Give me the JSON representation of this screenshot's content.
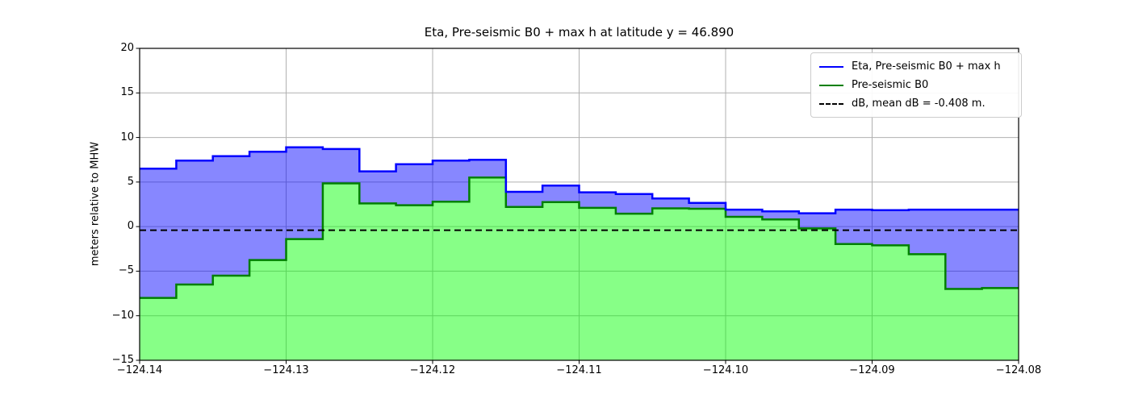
{
  "chart_data": {
    "type": "area",
    "step_mode": "post",
    "title": "Eta, Pre-seismic B0 + max h at latitude y = 46.890",
    "xlabel": "",
    "ylabel": "meters relative to MHW",
    "xlim": [
      -124.14,
      -124.08
    ],
    "ylim": [
      -15,
      20
    ],
    "xticks": [
      -124.14,
      -124.13,
      -124.12,
      -124.11,
      -124.1,
      -124.09,
      -124.08
    ],
    "xtick_labels": [
      "−124.14",
      "−124.13",
      "−124.12",
      "−124.11",
      "−124.10",
      "−124.09",
      "−124.08"
    ],
    "yticks": [
      -15,
      -10,
      -5,
      0,
      5,
      10,
      15,
      20
    ],
    "ytick_labels": [
      "−15",
      "−10",
      "−5",
      "0",
      "5",
      "10",
      "15",
      "20"
    ],
    "grid": true,
    "grid_color": "#b0b0b0",
    "legend_position": "upper right",
    "x_edges": [
      -124.14,
      -124.1375,
      -124.135,
      -124.1325,
      -124.13,
      -124.1275,
      -124.125,
      -124.1225,
      -124.12,
      -124.1175,
      -124.115,
      -124.1125,
      -124.11,
      -124.1075,
      -124.105,
      -124.1025,
      -124.1,
      -124.0975,
      -124.095,
      -124.0925,
      -124.09,
      -124.0875,
      -124.085,
      -124.0825,
      -124.08
    ],
    "series": [
      {
        "name": "Eta, Pre-seismic B0 + max h",
        "kind": "step-fill",
        "line_color": "#0000ff",
        "fill_color": "rgba(0,0,255,0.47)",
        "values": [
          6.5,
          7.4,
          7.9,
          8.4,
          8.9,
          8.7,
          6.2,
          7.0,
          7.4,
          7.5,
          3.9,
          4.6,
          3.85,
          3.65,
          3.15,
          2.65,
          1.9,
          1.7,
          1.5,
          1.9,
          1.85,
          1.9,
          1.9,
          1.9
        ]
      },
      {
        "name": "Pre-seismic B0",
        "kind": "step-fill",
        "line_color": "#007f00",
        "fill_color": "rgba(0,255,0,0.47)",
        "values": [
          -8.0,
          -6.5,
          -5.5,
          -3.75,
          -1.4,
          4.85,
          2.6,
          2.4,
          2.8,
          5.5,
          2.2,
          2.75,
          2.1,
          1.45,
          2.05,
          2.0,
          1.1,
          0.8,
          -0.2,
          -1.95,
          -2.1,
          -3.1,
          -7.0,
          -6.9
        ]
      },
      {
        "name": "dB, mean dB = -0.408 m.",
        "kind": "hline-dashed",
        "line_color": "#000000",
        "value": -0.408
      }
    ]
  }
}
